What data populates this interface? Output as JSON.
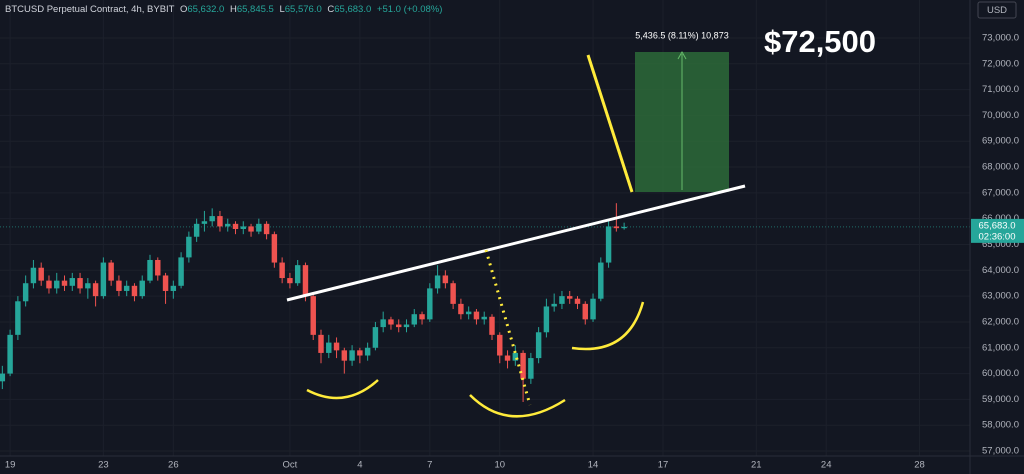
{
  "header": {
    "symbol": "BTCUSD Perpetual Contract, 4h, BYBIT",
    "open_key": "O",
    "open": "65,632.0",
    "high_key": "H",
    "high": "65,845.5",
    "low_key": "L",
    "low": "65,576.0",
    "close_key": "C",
    "close": "65,683.0",
    "change": "+51.0 (+0.08%)"
  },
  "currency": "USD",
  "last_price_label": "65,683.0",
  "countdown": "02:36:00",
  "measure_label": "5,436.5 (8.11%) 10,873",
  "target_label": "$72,500",
  "chart_data": {
    "type": "candlestick",
    "up_color": "#26a69a",
    "down_color": "#ef5350",
    "grid": true,
    "ylim": [
      56730,
      74470
    ],
    "yticks": [
      {
        "value": 57000,
        "label": "57,000.0"
      },
      {
        "value": 58000,
        "label": "58,000.0"
      },
      {
        "value": 59000,
        "label": "59,000.0"
      },
      {
        "value": 60000,
        "label": "60,000.0"
      },
      {
        "value": 61000,
        "label": "61,000.0"
      },
      {
        "value": 62000,
        "label": "62,000.0"
      },
      {
        "value": 63000,
        "label": "63,000.0"
      },
      {
        "value": 64000,
        "label": "64,000.0"
      },
      {
        "value": 65000,
        "label": "65,000.0"
      },
      {
        "value": 66000,
        "label": "66,000.0"
      },
      {
        "value": 67000,
        "label": "67,000.0"
      },
      {
        "value": 68000,
        "label": "68,000.0"
      },
      {
        "value": 69000,
        "label": "69,000.0"
      },
      {
        "value": 70000,
        "label": "70,000.0"
      },
      {
        "value": 71000,
        "label": "71,000.0"
      },
      {
        "value": 72000,
        "label": "72,000.0"
      },
      {
        "value": 73000,
        "label": "73,000.0"
      }
    ],
    "xlim": [
      -0.3,
      124.5
    ],
    "xticks": [
      {
        "value": 1,
        "label": "19"
      },
      {
        "value": 13,
        "label": "23"
      },
      {
        "value": 22,
        "label": "26"
      },
      {
        "value": 37,
        "label": "Oct"
      },
      {
        "value": 46,
        "label": "4"
      },
      {
        "value": 55,
        "label": "7"
      },
      {
        "value": 64,
        "label": "10"
      },
      {
        "value": 76,
        "label": "14"
      },
      {
        "value": 85,
        "label": "17"
      },
      {
        "value": 97,
        "label": "21"
      },
      {
        "value": 106,
        "label": "24"
      },
      {
        "value": 118,
        "label": "28"
      }
    ],
    "ohlc": [
      [
        59700,
        60300,
        59400,
        60000
      ],
      [
        60000,
        61700,
        59900,
        61500
      ],
      [
        61500,
        63000,
        61300,
        62800
      ],
      [
        62800,
        63800,
        62600,
        63500
      ],
      [
        63500,
        64400,
        63300,
        64100
      ],
      [
        64100,
        64300,
        63400,
        63600
      ],
      [
        63600,
        63800,
        63100,
        63300
      ],
      [
        63300,
        63900,
        63100,
        63600
      ],
      [
        63600,
        63800,
        63200,
        63400
      ],
      [
        63400,
        63900,
        63200,
        63700
      ],
      [
        63700,
        63900,
        63100,
        63300
      ],
      [
        63300,
        63700,
        62900,
        63500
      ],
      [
        63500,
        63600,
        62600,
        63000
      ],
      [
        63000,
        64500,
        62900,
        64300
      ],
      [
        64300,
        64400,
        63400,
        63600
      ],
      [
        63600,
        63800,
        63000,
        63200
      ],
      [
        63200,
        63600,
        63000,
        63400
      ],
      [
        63400,
        63500,
        62800,
        63000
      ],
      [
        63000,
        63800,
        62900,
        63600
      ],
      [
        63600,
        64600,
        63500,
        64400
      ],
      [
        64400,
        64500,
        63600,
        63800
      ],
      [
        63800,
        63900,
        62700,
        63200
      ],
      [
        63200,
        63600,
        62900,
        63400
      ],
      [
        63400,
        64700,
        63300,
        64500
      ],
      [
        64500,
        65500,
        64300,
        65300
      ],
      [
        65300,
        66000,
        65100,
        65800
      ],
      [
        65800,
        66300,
        65500,
        65900
      ],
      [
        65900,
        66400,
        65700,
        66100
      ],
      [
        66100,
        66300,
        65500,
        65700
      ],
      [
        65700,
        66000,
        65500,
        65800
      ],
      [
        65800,
        65900,
        65400,
        65600
      ],
      [
        65600,
        65900,
        65400,
        65700
      ],
      [
        65700,
        65800,
        65300,
        65500
      ],
      [
        65500,
        66000,
        65400,
        65800
      ],
      [
        65800,
        65900,
        65200,
        65400
      ],
      [
        65400,
        65500,
        64100,
        64300
      ],
      [
        64300,
        64500,
        63500,
        63700
      ],
      [
        63700,
        63900,
        63300,
        63500
      ],
      [
        63500,
        64400,
        63400,
        64200
      ],
      [
        64200,
        64300,
        62800,
        63000
      ],
      [
        63000,
        63100,
        61300,
        61500
      ],
      [
        61500,
        61700,
        60400,
        60800
      ],
      [
        60800,
        61500,
        60600,
        61200
      ],
      [
        61200,
        61400,
        60600,
        60900
      ],
      [
        60900,
        61000,
        60000,
        60500
      ],
      [
        60500,
        61100,
        60300,
        60900
      ],
      [
        60900,
        61000,
        60400,
        60700
      ],
      [
        60700,
        61200,
        60500,
        61000
      ],
      [
        61000,
        62000,
        60900,
        61800
      ],
      [
        61800,
        62400,
        61600,
        62100
      ],
      [
        62100,
        62200,
        61700,
        61900
      ],
      [
        61900,
        62100,
        61600,
        61800
      ],
      [
        61800,
        62100,
        61600,
        61900
      ],
      [
        61900,
        62500,
        61800,
        62300
      ],
      [
        62300,
        62400,
        61900,
        62100
      ],
      [
        62100,
        63500,
        62000,
        63300
      ],
      [
        63300,
        64200,
        63100,
        63800
      ],
      [
        63800,
        64000,
        63300,
        63500
      ],
      [
        63500,
        63600,
        62500,
        62700
      ],
      [
        62700,
        62900,
        62100,
        62300
      ],
      [
        62300,
        62600,
        62100,
        62400
      ],
      [
        62400,
        62500,
        61900,
        62100
      ],
      [
        62100,
        62400,
        61900,
        62200
      ],
      [
        62200,
        62300,
        61300,
        61500
      ],
      [
        61500,
        61600,
        60400,
        60700
      ],
      [
        60700,
        60900,
        60200,
        60500
      ],
      [
        60500,
        61100,
        60300,
        60800
      ],
      [
        60800,
        60900,
        58900,
        59800
      ],
      [
        59800,
        60800,
        59600,
        60600
      ],
      [
        60600,
        61800,
        60400,
        61600
      ],
      [
        61600,
        62900,
        61400,
        62600
      ],
      [
        62600,
        63100,
        62400,
        62700
      ],
      [
        62700,
        63200,
        62500,
        63000
      ],
      [
        63000,
        63200,
        62700,
        62900
      ],
      [
        62900,
        63000,
        62500,
        62700
      ],
      [
        62700,
        62800,
        61900,
        62100
      ],
      [
        62100,
        63100,
        62000,
        62900
      ],
      [
        62900,
        64500,
        62800,
        64300
      ],
      [
        64300,
        65900,
        64100,
        65700
      ],
      [
        65700,
        66600,
        65500,
        65632
      ],
      [
        65632,
        65845.5,
        65576,
        65683
      ]
    ]
  }
}
